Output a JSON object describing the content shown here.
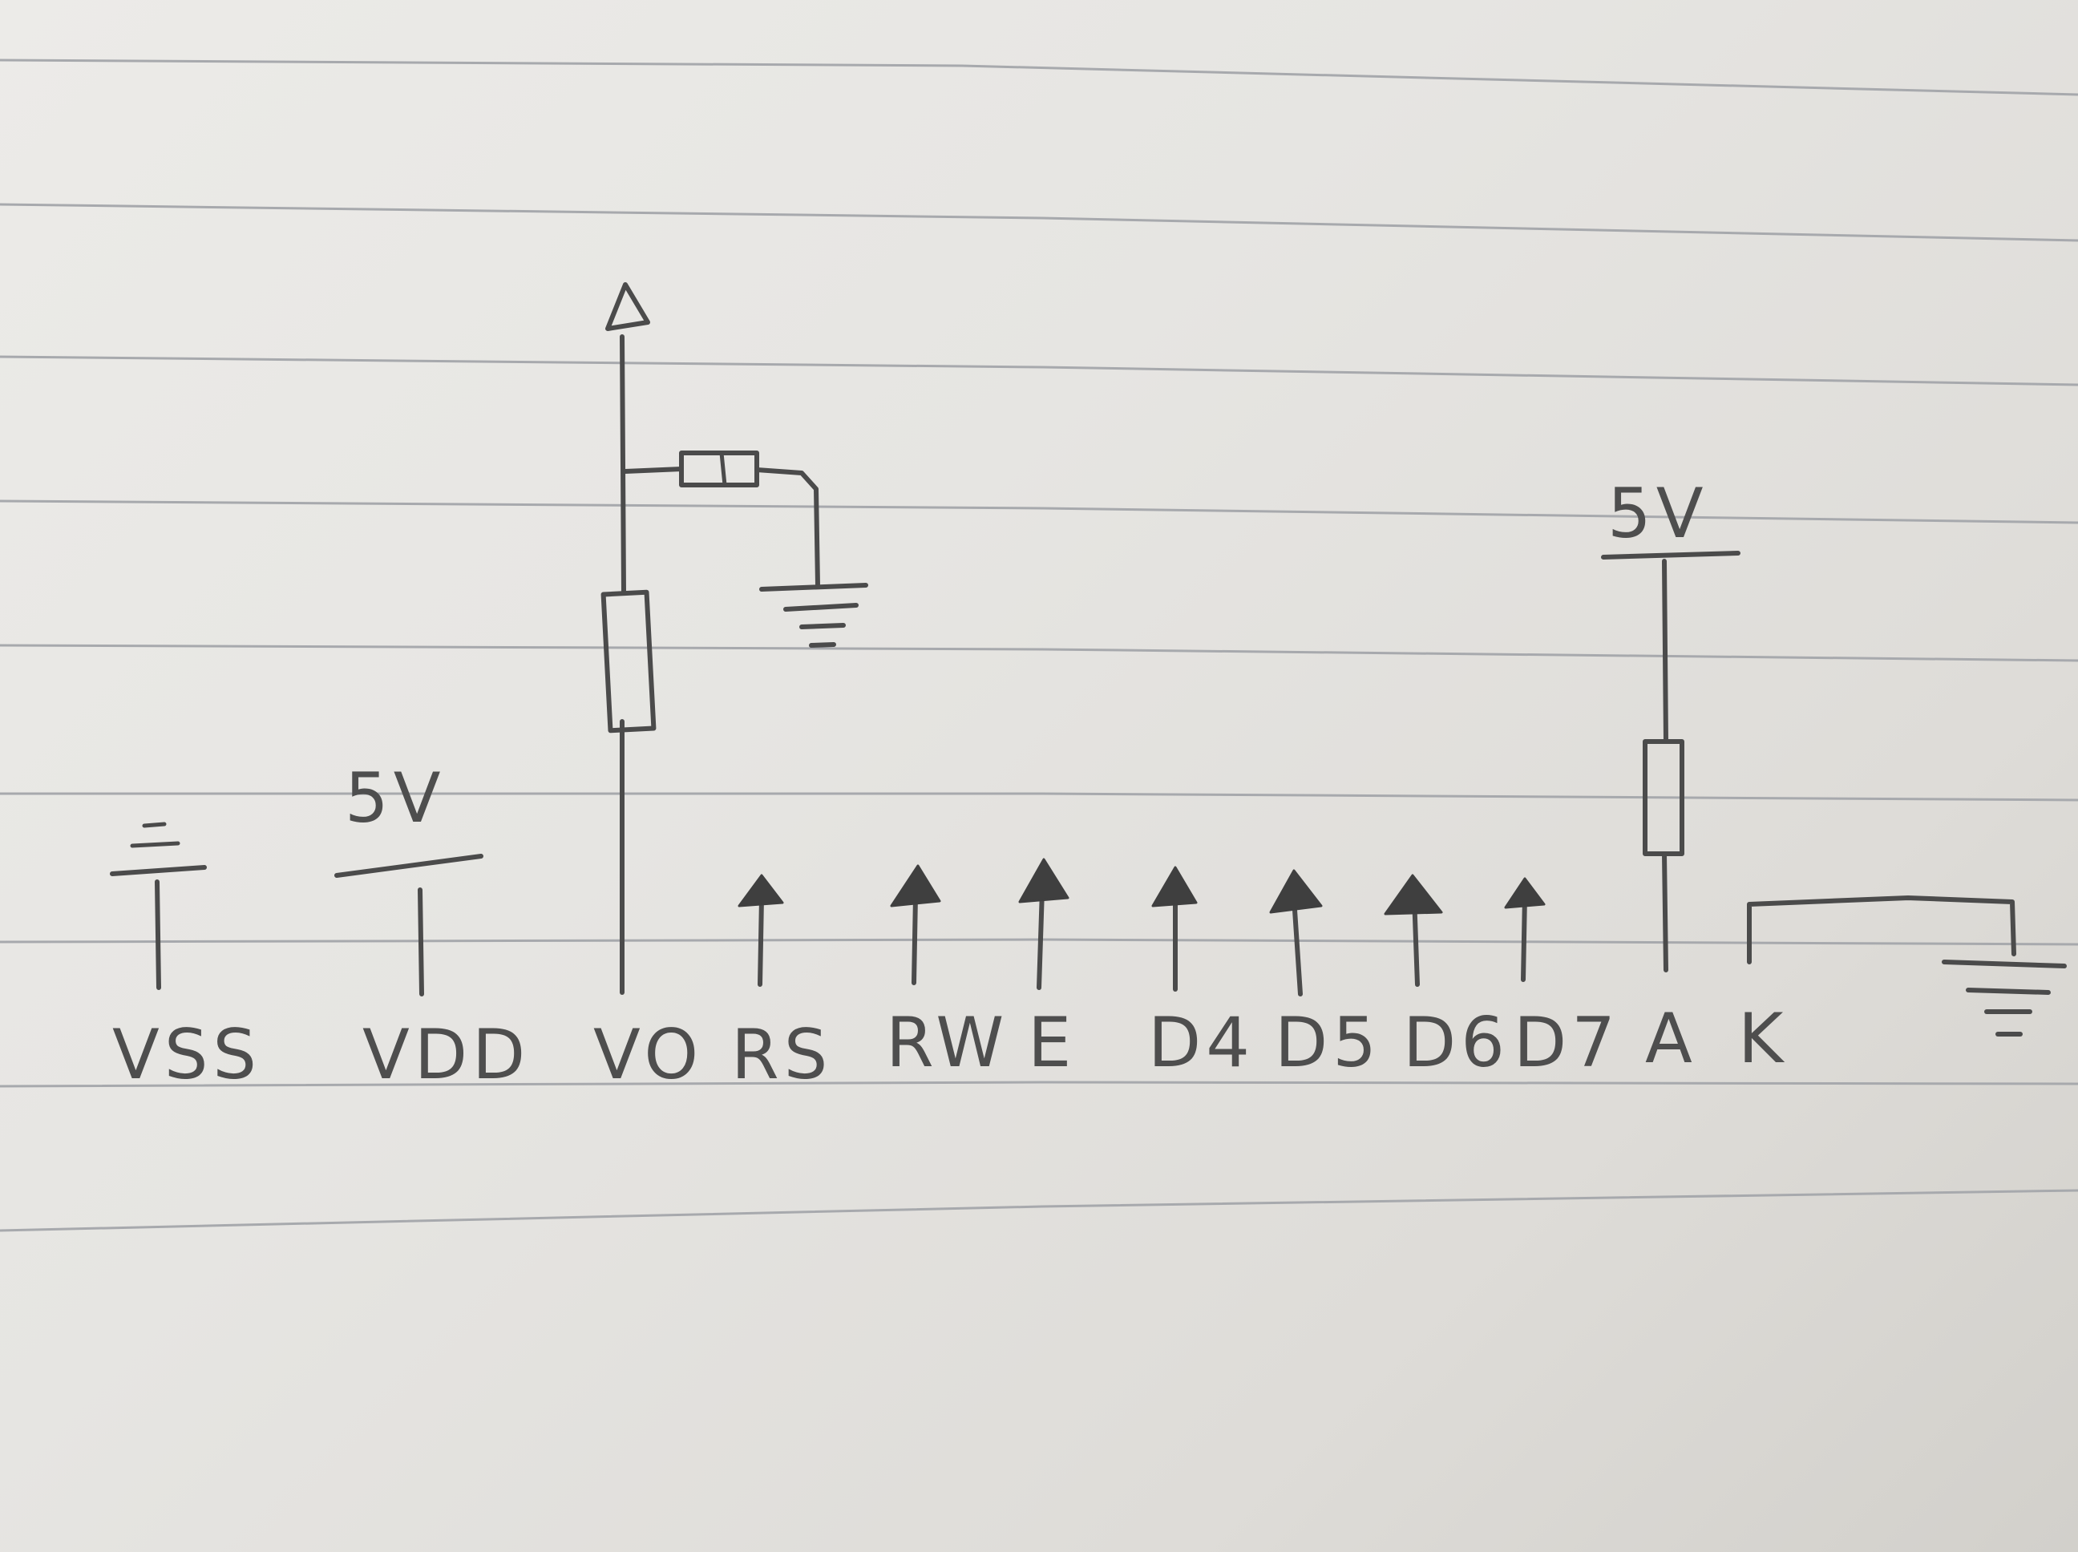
{
  "diagram": {
    "pins": [
      {
        "id": "vss",
        "label": "VSS"
      },
      {
        "id": "vdd",
        "label": "VDD"
      },
      {
        "id": "vo",
        "label": "VO"
      },
      {
        "id": "rs",
        "label": "RS"
      },
      {
        "id": "rw",
        "label": "RW"
      },
      {
        "id": "e",
        "label": "E"
      },
      {
        "id": "d4",
        "label": "D4"
      },
      {
        "id": "d5",
        "label": "D5"
      },
      {
        "id": "d6",
        "label": "D6"
      },
      {
        "id": "d7",
        "label": "D7"
      },
      {
        "id": "a",
        "label": "A"
      },
      {
        "id": "k",
        "label": "K"
      }
    ],
    "supply_labels": {
      "vdd": "5V",
      "anode": "5V"
    }
  },
  "colors": {
    "ink": "#4b4b4b",
    "paper": "#e8e7e4",
    "rule": "#a7a9ad"
  }
}
